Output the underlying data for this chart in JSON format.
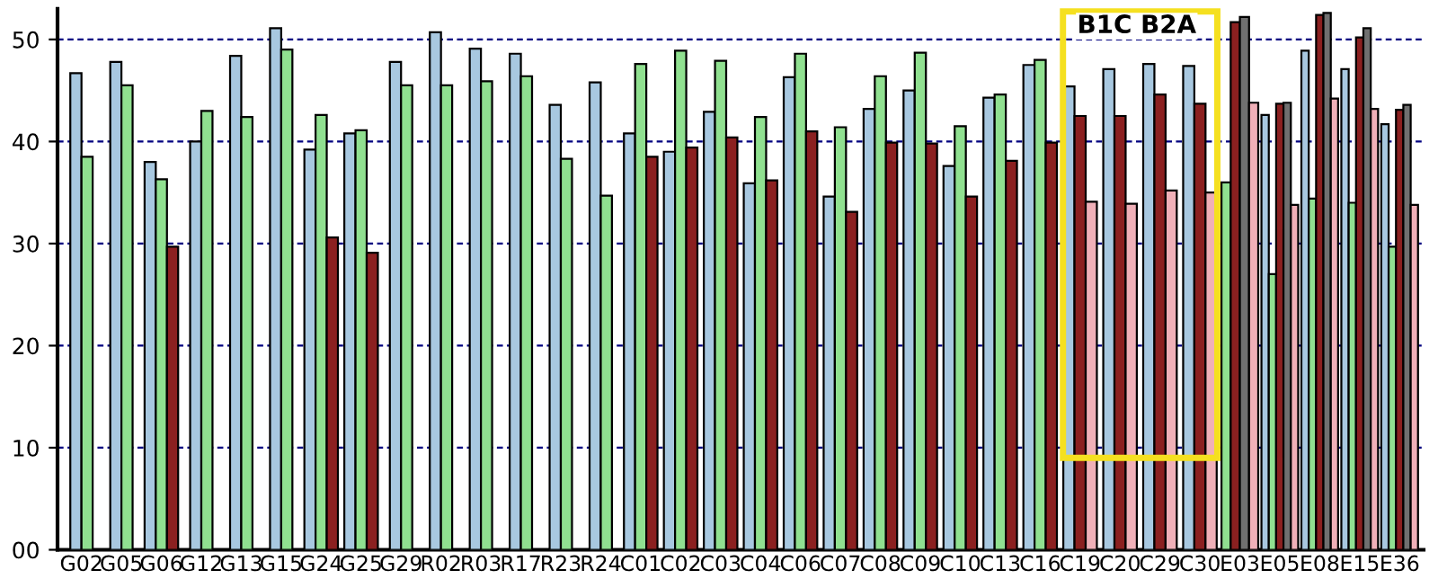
{
  "chart_data": {
    "type": "bar",
    "categories": [
      "G02",
      "G05",
      "G06",
      "G12",
      "G13",
      "G15",
      "G24",
      "G25",
      "G29",
      "R02",
      "R03",
      "R17",
      "R23",
      "R24",
      "C01",
      "C02",
      "C03",
      "C04",
      "C06",
      "C07",
      "C08",
      "C09",
      "C10",
      "C13",
      "C16",
      "C19",
      "C20",
      "C29",
      "C30",
      "E03",
      "E05",
      "E08",
      "E15",
      "E36"
    ],
    "series": [
      {
        "color": "#a8c8e0",
        "values": [
          46.7,
          47.8,
          38,
          40,
          48.4,
          51.1,
          39.2,
          40.8,
          47.8,
          50.7,
          49.1,
          48.6,
          43.6,
          45.8,
          40.8,
          39,
          42.9,
          35.9,
          46.3,
          34.6,
          43.2,
          45,
          37.6,
          44.3,
          47.5,
          45.4,
          47.1,
          47.6,
          47.4,
          null,
          42.6,
          48.9,
          47.1,
          41.7
        ]
      },
      {
        "color": "#90e090",
        "values": [
          38.5,
          45.5,
          36.3,
          43,
          42.4,
          49,
          42.6,
          41.1,
          45.5,
          45.5,
          45.9,
          46.4,
          38.3,
          34.7,
          47.6,
          48.9,
          47.9,
          42.4,
          48.6,
          41.4,
          46.4,
          48.7,
          41.5,
          44.6,
          48,
          null,
          null,
          null,
          null,
          36,
          27,
          34.4,
          34,
          29.7
        ]
      },
      {
        "color": "#8b2020",
        "values": [
          null,
          null,
          29.7,
          null,
          null,
          null,
          30.6,
          29.1,
          null,
          null,
          null,
          null,
          null,
          null,
          38.5,
          39.4,
          40.4,
          36.2,
          41,
          33.1,
          39.9,
          39.8,
          34.6,
          38.1,
          39.9,
          42.5,
          42.5,
          44.6,
          43.7,
          51.7,
          43.7,
          52.4,
          50.2,
          43.1
        ]
      },
      {
        "color": "#707070",
        "values": [
          null,
          null,
          null,
          null,
          null,
          null,
          null,
          null,
          null,
          null,
          null,
          null,
          null,
          null,
          null,
          null,
          null,
          null,
          null,
          null,
          null,
          null,
          null,
          null,
          null,
          null,
          null,
          null,
          null,
          52.2,
          43.8,
          52.6,
          51.1,
          43.6
        ]
      },
      {
        "color": "#f0b0b8",
        "values": [
          null,
          null,
          null,
          null,
          null,
          null,
          null,
          null,
          null,
          null,
          null,
          null,
          null,
          null,
          null,
          null,
          null,
          null,
          null,
          null,
          null,
          null,
          null,
          null,
          null,
          34.1,
          33.9,
          35.2,
          35,
          43.8,
          33.8,
          44.2,
          43.2,
          33.8
        ]
      }
    ],
    "ylim": [
      0,
      53
    ],
    "yticks": [
      {
        "value": 0,
        "label": "00"
      },
      10,
      20,
      30,
      40,
      50
    ],
    "grid": "y",
    "legend": false,
    "annotations": [
      "B1C B2A"
    ]
  }
}
